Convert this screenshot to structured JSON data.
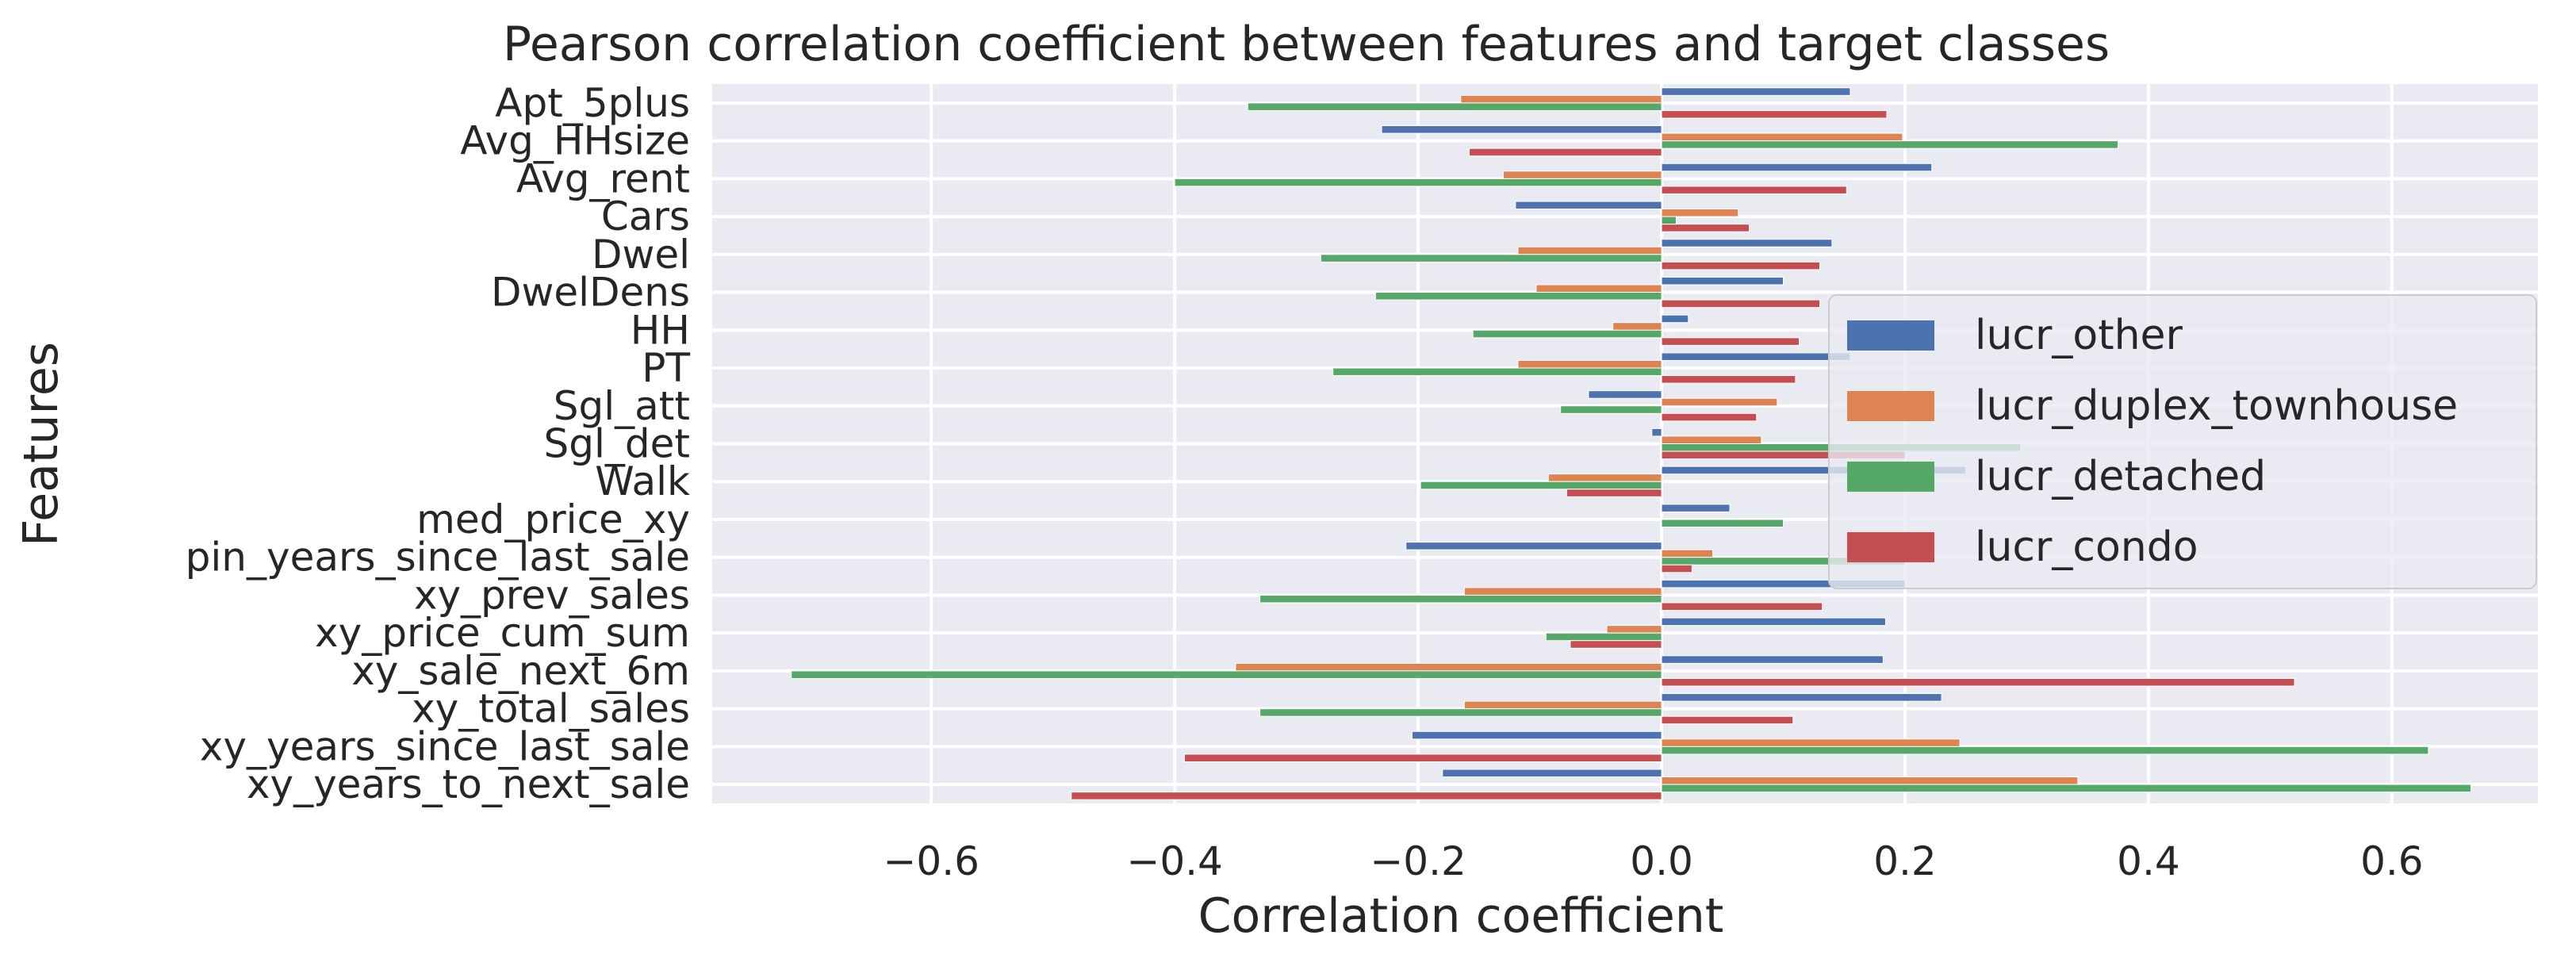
{
  "chart_data": {
    "type": "bar",
    "orientation": "horizontal",
    "title": "Pearson correlation coefficient between features and target classes",
    "xlabel": "Correlation coefficient",
    "ylabel": "Features",
    "xlim": [
      -0.78,
      0.72
    ],
    "xticks": [
      -0.6,
      -0.4,
      -0.2,
      0.0,
      0.2,
      0.4,
      0.6
    ],
    "xtick_labels": [
      "−0.6",
      "−0.4",
      "−0.2",
      "0.0",
      "0.2",
      "0.4",
      "0.6"
    ],
    "grid": true,
    "legend_position": "right",
    "categories": [
      "Apt_5plus",
      "Avg_HHsize",
      "Avg_rent",
      "Cars",
      "Dwel",
      "DwelDens",
      "HH",
      "PT",
      "Sgl_att",
      "Sgl_det",
      "Walk",
      "med_price_xy",
      "pin_years_since_last_sale",
      "xy_prev_sales",
      "xy_price_cum_sum",
      "xy_sale_next_6m",
      "xy_total_sales",
      "xy_years_since_last_sale",
      "xy_years_to_next_sale"
    ],
    "series": [
      {
        "name": "lucr_other",
        "color": "#4c72b0",
        "values": [
          0.155,
          -0.23,
          0.222,
          -0.12,
          0.14,
          0.1,
          0.022,
          0.155,
          -0.06,
          -0.008,
          0.25,
          0.056,
          -0.21,
          0.2,
          0.184,
          0.182,
          0.23,
          -0.205,
          -0.18
        ]
      },
      {
        "name": "lucr_duplex_townhouse",
        "color": "#dd8452",
        "values": [
          -0.165,
          0.198,
          -0.13,
          0.063,
          -0.118,
          -0.103,
          -0.04,
          -0.118,
          0.095,
          0.082,
          -0.093,
          0.0,
          0.042,
          -0.162,
          -0.045,
          -0.35,
          -0.162,
          0.245,
          0.342
        ]
      },
      {
        "name": "lucr_detached",
        "color": "#55a868",
        "values": [
          -0.34,
          0.375,
          -0.4,
          0.012,
          -0.28,
          -0.235,
          -0.155,
          -0.27,
          -0.083,
          0.295,
          -0.198,
          0.1,
          0.2,
          -0.33,
          -0.095,
          -0.715,
          -0.33,
          0.63,
          0.665
        ]
      },
      {
        "name": "lucr_condo",
        "color": "#c44e52",
        "values": [
          0.185,
          -0.158,
          0.152,
          0.072,
          0.13,
          0.13,
          0.113,
          0.11,
          0.078,
          0.2,
          -0.078,
          0.0,
          0.025,
          0.132,
          -0.075,
          0.52,
          0.108,
          -0.392,
          -0.485
        ]
      }
    ]
  }
}
